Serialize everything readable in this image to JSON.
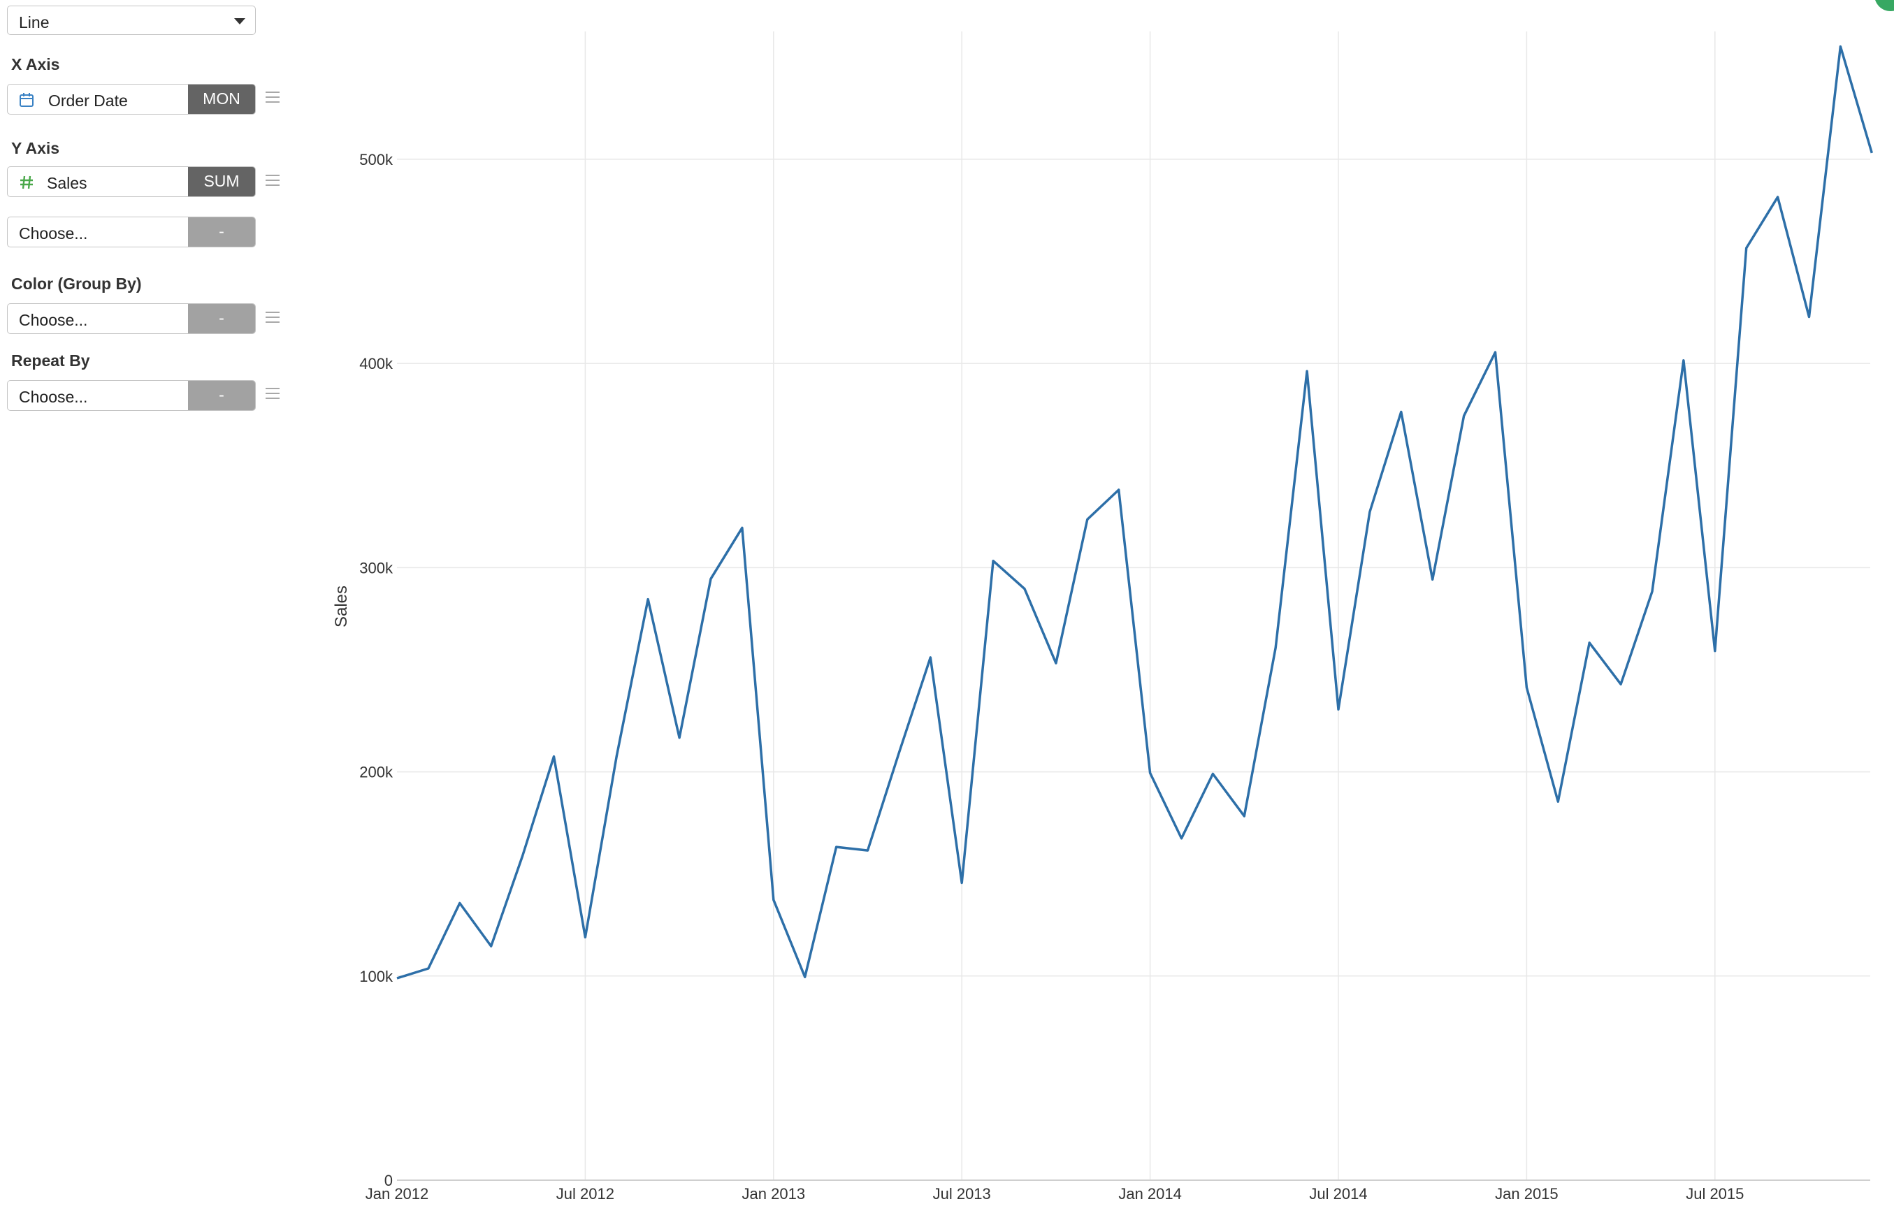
{
  "chart_type_selector": {
    "value": "Line"
  },
  "x_axis": {
    "title": "X Axis",
    "field": "Order Date",
    "aggregation": "MON"
  },
  "y_axis": {
    "title": "Y Axis",
    "field": "Sales",
    "aggregation": "SUM",
    "second_field": "Choose...",
    "second_aggregation": "-"
  },
  "color_group": {
    "title": "Color (Group By)",
    "field": "Choose...",
    "aggregation": "-"
  },
  "repeat_by": {
    "title": "Repeat By",
    "field": "Choose...",
    "aggregation": "-"
  },
  "icons": {
    "x_field": "calendar-icon",
    "y_field": "hash-icon",
    "menu": "hamburger-menu-icon",
    "status": "status-dot-icon"
  },
  "colors": {
    "line": "#2d6fa8",
    "calendar": "#3a82c4",
    "hash": "#4aa84a",
    "status": "#37a862"
  },
  "chart_data": {
    "type": "line",
    "title": "",
    "xlabel": "",
    "ylabel": "Sales",
    "x": [
      "2012-01",
      "2012-02",
      "2012-03",
      "2012-04",
      "2012-05",
      "2012-06",
      "2012-07",
      "2012-08",
      "2012-09",
      "2012-10",
      "2012-11",
      "2012-12",
      "2013-01",
      "2013-02",
      "2013-03",
      "2013-04",
      "2013-05",
      "2013-06",
      "2013-07",
      "2013-08",
      "2013-09",
      "2013-10",
      "2013-11",
      "2013-12",
      "2014-01",
      "2014-02",
      "2014-03",
      "2014-04",
      "2014-05",
      "2014-06",
      "2014-07",
      "2014-08",
      "2014-09",
      "2014-10",
      "2014-11",
      "2014-12",
      "2015-01",
      "2015-02",
      "2015-03",
      "2015-04",
      "2015-05",
      "2015-06",
      "2015-07",
      "2015-08",
      "2015-09",
      "2015-10",
      "2015-11",
      "2015-12"
    ],
    "series": [
      {
        "values": [
          98900,
          103700,
          135700,
          114600,
          158800,
          207500,
          119000,
          207700,
          284500,
          216700,
          294500,
          319500,
          137300,
          99500,
          163200,
          161500,
          209400,
          256000,
          145600,
          303300,
          289600,
          253200,
          323600,
          338100,
          199400,
          167400,
          199000,
          178300,
          260800,
          396200,
          230600,
          327300,
          376300,
          294200,
          374300,
          405500,
          241300,
          185400,
          263200,
          242900,
          288300,
          401500,
          259200,
          456500,
          481500,
          422800,
          555200,
          503100
        ]
      }
    ],
    "xlim": [
      "2012-01",
      "2015-12"
    ],
    "x_ticks": [
      "Jan 2012",
      "Jul 2012",
      "Jan 2013",
      "Jul 2013",
      "Jan 2014",
      "Jul 2014",
      "Jan 2015",
      "Jul 2015"
    ],
    "y_ticks": [
      "0",
      "100k",
      "200k",
      "300k",
      "400k",
      "500k"
    ],
    "ylim": [
      0,
      578000
    ],
    "grid": true,
    "legend": "none"
  }
}
